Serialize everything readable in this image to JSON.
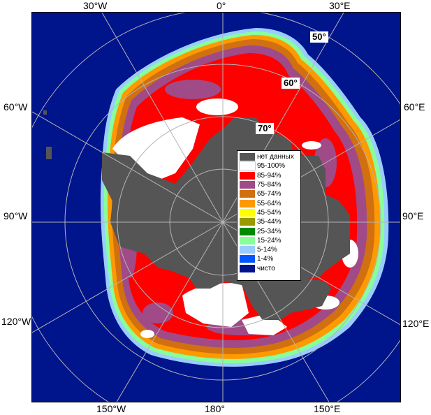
{
  "map": {
    "colors": {
      "ocean": "#00148c",
      "land": "#555555",
      "grid": "#b4b4b4"
    },
    "lon_labels": [
      {
        "key": "top_30w",
        "text": "30°W"
      },
      {
        "key": "top_0",
        "text": "0°"
      },
      {
        "key": "top_30e",
        "text": "30°E"
      },
      {
        "key": "left_60w",
        "text": "60°W"
      },
      {
        "key": "right_60e",
        "text": "60°E"
      },
      {
        "key": "left_90w",
        "text": "90°W"
      },
      {
        "key": "right_90e",
        "text": "90°E"
      },
      {
        "key": "left_120w",
        "text": "120°W"
      },
      {
        "key": "right_120e",
        "text": "120°E"
      },
      {
        "key": "bottom_150w",
        "text": "150°W"
      },
      {
        "key": "bottom_180",
        "text": "180°"
      },
      {
        "key": "bottom_150e",
        "text": "150°E"
      }
    ],
    "lat_labels": [
      "50°",
      "60°",
      "70°"
    ],
    "legend": [
      {
        "label": "нет данных",
        "color": "#555555"
      },
      {
        "label": "95-100%",
        "color": "#ffffff"
      },
      {
        "label": "85-94%",
        "color": "#ff0000"
      },
      {
        "label": "75-84%",
        "color": "#a04a88"
      },
      {
        "label": "65-74%",
        "color": "#d07010"
      },
      {
        "label": "55-64%",
        "color": "#ff9900"
      },
      {
        "label": "45-54%",
        "color": "#ffff00"
      },
      {
        "label": "35-44%",
        "color": "#999900"
      },
      {
        "label": "25-34%",
        "color": "#008800"
      },
      {
        "label": "15-24%",
        "color": "#88ff99"
      },
      {
        "label": "5-14%",
        "color": "#99ccff"
      },
      {
        "label": "1-4%",
        "color": "#0055ff"
      },
      {
        "label": "чисто",
        "color": "#00148c"
      }
    ]
  }
}
